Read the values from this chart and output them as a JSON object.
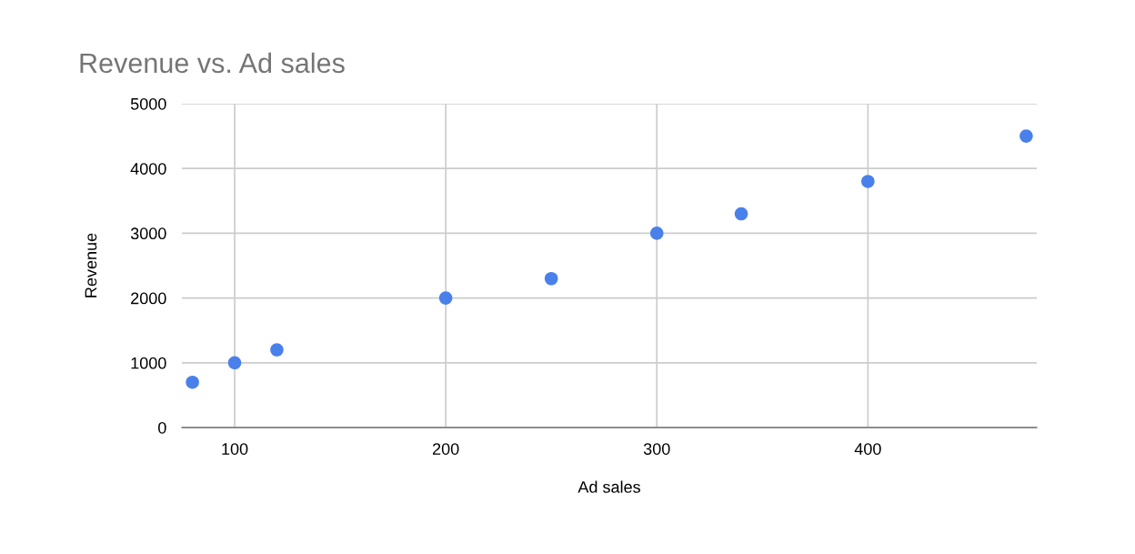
{
  "chart_data": {
    "type": "scatter",
    "title": "Revenue vs. Ad sales",
    "xlabel": "Ad sales",
    "ylabel": "Revenue",
    "x": [
      80,
      100,
      120,
      200,
      250,
      300,
      340,
      400,
      475
    ],
    "series": [
      {
        "color": "#4a80ea",
        "values": [
          700,
          1000,
          1200,
          2000,
          2300,
          3000,
          3300,
          3800,
          4500
        ]
      }
    ],
    "xlim": [
      75,
      480
    ],
    "xticks": [
      100,
      200,
      300,
      400
    ],
    "ylim": [
      0,
      5000
    ],
    "yticks": [
      0,
      1000,
      2000,
      3000,
      4000,
      5000
    ],
    "grid": true,
    "marker": "circle"
  }
}
